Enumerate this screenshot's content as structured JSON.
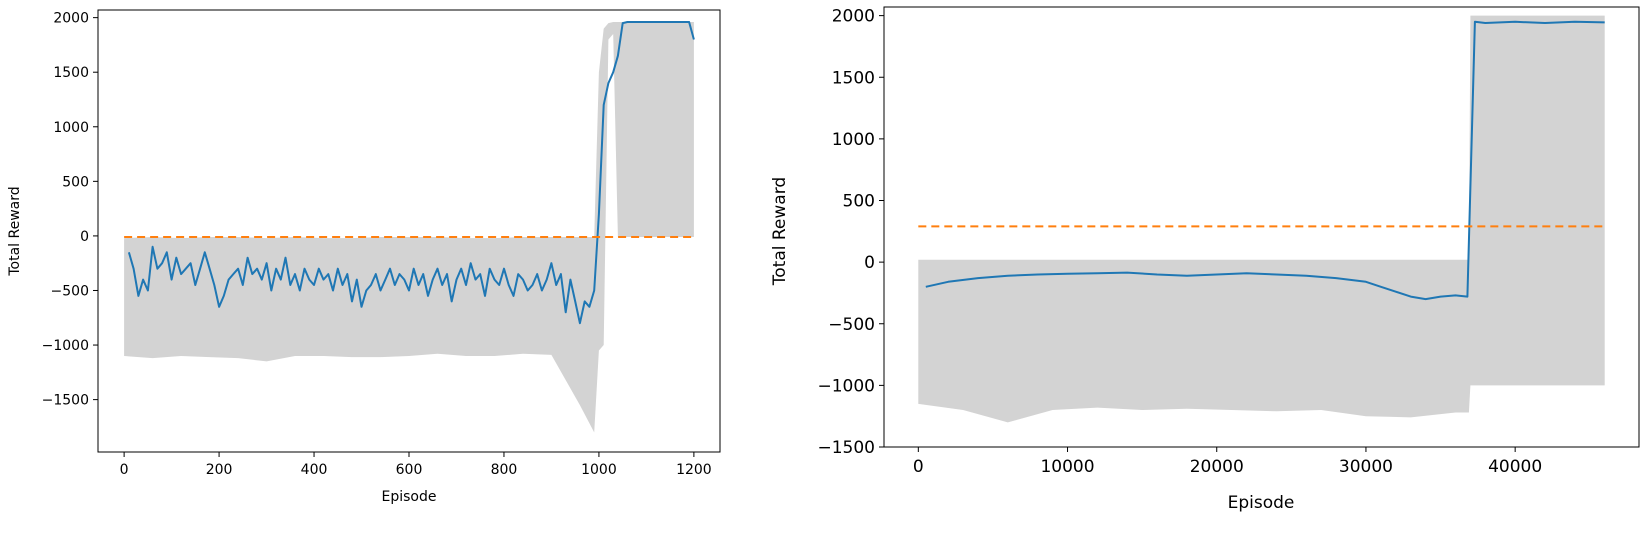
{
  "chart_data": [
    {
      "type": "line",
      "xlabel": "Episode",
      "ylabel": "Total Reward",
      "xlim": [
        -55,
        1255
      ],
      "ylim": [
        -1980,
        2070
      ],
      "xticks": [
        0,
        200,
        400,
        600,
        800,
        1000,
        1200
      ],
      "yticks": [
        -1500,
        -1000,
        -500,
        0,
        500,
        1000,
        1500,
        2000
      ],
      "series": [
        {
          "style": "raw-band",
          "color": "#d3d3d3",
          "x": [
            0,
            60,
            120,
            180,
            240,
            300,
            360,
            420,
            480,
            540,
            600,
            660,
            720,
            780,
            840,
            900,
            960,
            990,
            1000,
            1010,
            1020,
            1030,
            1040,
            1050,
            1060,
            1100,
            1150,
            1200
          ],
          "low": [
            -1100,
            -1120,
            -1100,
            -1110,
            -1120,
            -1150,
            -1100,
            -1100,
            -1110,
            -1110,
            -1100,
            -1080,
            -1100,
            -1100,
            -1080,
            -1090,
            -1550,
            -1800,
            -1050,
            -1000,
            1800,
            1850,
            -10,
            -10,
            -10,
            -10,
            -10,
            -10
          ],
          "high": [
            -20,
            -10,
            -20,
            -10,
            -10,
            -20,
            -10,
            -20,
            -20,
            -10,
            -10,
            -10,
            -20,
            -20,
            -10,
            -10,
            -10,
            -10,
            1500,
            1900,
            1950,
            1960,
            1960,
            1960,
            1960,
            1960,
            1960,
            1960
          ]
        },
        {
          "style": "moving-average",
          "color": "#1f77b4",
          "x": [
            10,
            20,
            30,
            40,
            50,
            60,
            70,
            80,
            90,
            100,
            110,
            120,
            130,
            140,
            150,
            160,
            170,
            180,
            190,
            200,
            210,
            220,
            230,
            240,
            250,
            260,
            270,
            280,
            290,
            300,
            310,
            320,
            330,
            340,
            350,
            360,
            370,
            380,
            390,
            400,
            410,
            420,
            430,
            440,
            450,
            460,
            470,
            480,
            490,
            500,
            510,
            520,
            530,
            540,
            550,
            560,
            570,
            580,
            590,
            600,
            610,
            620,
            630,
            640,
            650,
            660,
            670,
            680,
            690,
            700,
            710,
            720,
            730,
            740,
            750,
            760,
            770,
            780,
            790,
            800,
            810,
            820,
            830,
            840,
            850,
            860,
            870,
            880,
            890,
            900,
            910,
            920,
            930,
            940,
            950,
            960,
            970,
            980,
            990,
            1000,
            1010,
            1020,
            1030,
            1040,
            1050,
            1060,
            1100,
            1150,
            1190,
            1200
          ],
          "y": [
            -150,
            -300,
            -550,
            -400,
            -500,
            -100,
            -300,
            -250,
            -150,
            -400,
            -200,
            -350,
            -300,
            -250,
            -450,
            -300,
            -150,
            -300,
            -450,
            -650,
            -550,
            -400,
            -350,
            -300,
            -450,
            -200,
            -350,
            -300,
            -400,
            -250,
            -500,
            -300,
            -400,
            -200,
            -450,
            -350,
            -500,
            -300,
            -400,
            -450,
            -300,
            -400,
            -350,
            -500,
            -300,
            -450,
            -350,
            -600,
            -400,
            -650,
            -500,
            -450,
            -350,
            -500,
            -400,
            -300,
            -450,
            -350,
            -400,
            -500,
            -300,
            -450,
            -350,
            -550,
            -400,
            -300,
            -450,
            -350,
            -600,
            -400,
            -300,
            -450,
            -250,
            -400,
            -350,
            -550,
            -300,
            -400,
            -450,
            -300,
            -450,
            -550,
            -350,
            -400,
            -500,
            -450,
            -350,
            -500,
            -400,
            -250,
            -450,
            -350,
            -700,
            -400,
            -600,
            -800,
            -600,
            -650,
            -500,
            200,
            1200,
            1400,
            1500,
            1650,
            1950,
            1960,
            1960,
            1960,
            1960,
            1800
          ]
        },
        {
          "style": "threshold",
          "color": "#ff7f0e",
          "x": [
            0,
            1200
          ],
          "y": [
            -10,
            -10
          ]
        }
      ]
    },
    {
      "type": "line",
      "xlabel": "Episode",
      "ylabel": "Total Reward",
      "xlim": [
        -2300,
        48300
      ],
      "ylim": [
        -1500,
        2070
      ],
      "xticks": [
        0,
        10000,
        20000,
        30000,
        40000
      ],
      "yticks": [
        -1500,
        -1000,
        -500,
        0,
        500,
        1000,
        1500,
        2000
      ],
      "series": [
        {
          "style": "raw-band",
          "color": "#d3d3d3",
          "x": [
            0,
            3000,
            6000,
            9000,
            12000,
            15000,
            18000,
            21000,
            24000,
            27000,
            30000,
            33000,
            36000,
            36900,
            37000,
            38000,
            40000,
            42000,
            44000,
            46000
          ],
          "low": [
            -1150,
            -1200,
            -1300,
            -1200,
            -1180,
            -1200,
            -1190,
            -1200,
            -1210,
            -1200,
            -1250,
            -1260,
            -1220,
            -1220,
            -1000,
            -1000,
            -1000,
            -1000,
            -1000,
            -1000
          ],
          "high": [
            20,
            20,
            20,
            20,
            20,
            20,
            20,
            20,
            20,
            20,
            20,
            20,
            20,
            20,
            2000,
            2000,
            2000,
            2000,
            2000,
            2000
          ]
        },
        {
          "style": "moving-average",
          "color": "#1f77b4",
          "x": [
            500,
            2000,
            4000,
            6000,
            8000,
            10000,
            12000,
            14000,
            16000,
            18000,
            20000,
            22000,
            24000,
            26000,
            28000,
            30000,
            31000,
            32000,
            33000,
            34000,
            35000,
            36000,
            36800,
            37300,
            38000,
            40000,
            42000,
            44000,
            46000
          ],
          "y": [
            -200,
            -160,
            -130,
            -110,
            -100,
            -95,
            -90,
            -85,
            -100,
            -110,
            -100,
            -90,
            -100,
            -110,
            -130,
            -160,
            -200,
            -240,
            -280,
            -300,
            -280,
            -270,
            -280,
            1950,
            1940,
            1950,
            1940,
            1950,
            1945
          ]
        },
        {
          "style": "threshold",
          "color": "#ff7f0e",
          "x": [
            0,
            46000
          ],
          "y": [
            290,
            290
          ]
        }
      ]
    }
  ]
}
